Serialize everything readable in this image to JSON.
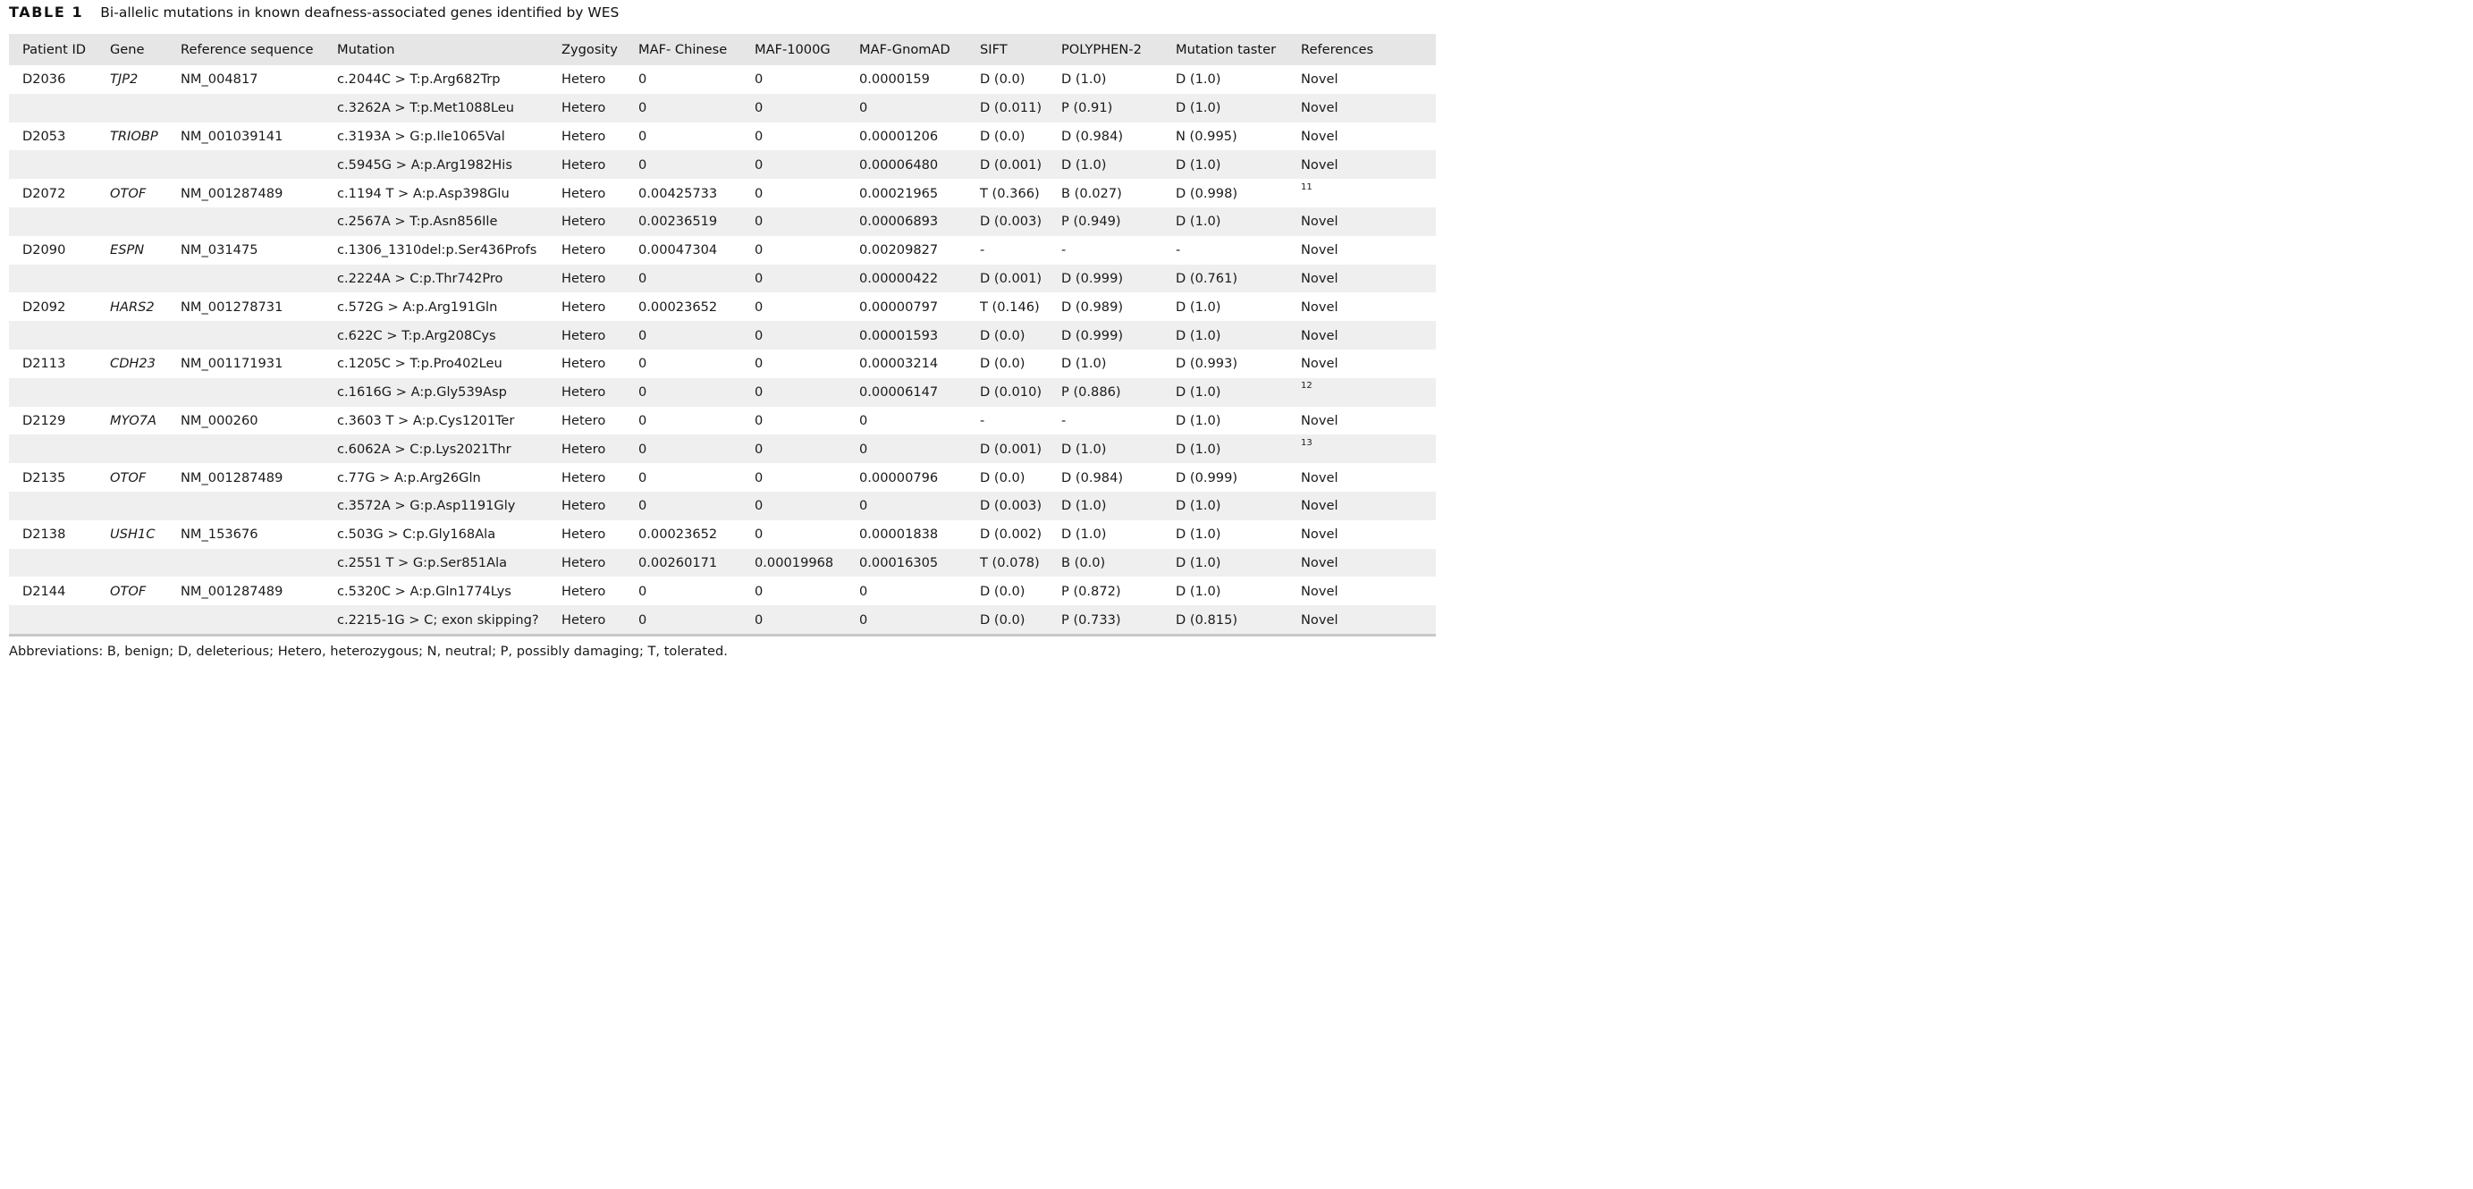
{
  "caption": {
    "label": "TABLE 1",
    "title": "Bi-allelic mutations in known deafness-associated genes identified by WES"
  },
  "columns": [
    "Patient ID",
    "Gene",
    "Reference sequence",
    "Mutation",
    "Zygosity",
    "MAF- Chinese",
    "MAF-1000G",
    "MAF-GnomAD",
    "SIFT",
    "POLYPHEN-2",
    "Mutation taster",
    "References"
  ],
  "rows": [
    {
      "patient": "D2036",
      "gene": "TJP2",
      "refseq": "NM_004817",
      "mutation": "c.2044C > T:p.Arg682Trp",
      "zygosity": "Hetero",
      "maf_chinese": "0",
      "maf_1000g": "0",
      "maf_gnomad": "0.0000159",
      "sift": "D (0.0)",
      "polyphen": "D (1.0)",
      "taster": "D (1.0)",
      "reference": "Novel",
      "reference_is_citation": false
    },
    {
      "patient": "",
      "gene": "",
      "refseq": "",
      "mutation": "c.3262A > T:p.Met1088Leu",
      "zygosity": "Hetero",
      "maf_chinese": "0",
      "maf_1000g": "0",
      "maf_gnomad": "0",
      "sift": "D (0.011)",
      "polyphen": "P (0.91)",
      "taster": "D (1.0)",
      "reference": "Novel",
      "reference_is_citation": false
    },
    {
      "patient": "D2053",
      "gene": "TRIOBP",
      "refseq": "NM_001039141",
      "mutation": "c.3193A > G:p.Ile1065Val",
      "zygosity": "Hetero",
      "maf_chinese": "0",
      "maf_1000g": "0",
      "maf_gnomad": "0.00001206",
      "sift": "D (0.0)",
      "polyphen": "D (0.984)",
      "taster": "N (0.995)",
      "reference": "Novel",
      "reference_is_citation": false
    },
    {
      "patient": "",
      "gene": "",
      "refseq": "",
      "mutation": "c.5945G > A:p.Arg1982His",
      "zygosity": "Hetero",
      "maf_chinese": "0",
      "maf_1000g": "0",
      "maf_gnomad": "0.00006480",
      "sift": "D (0.001)",
      "polyphen": "D (1.0)",
      "taster": "D (1.0)",
      "reference": "Novel",
      "reference_is_citation": false
    },
    {
      "patient": "D2072",
      "gene": "OTOF",
      "refseq": "NM_001287489",
      "mutation": "c.1194 T > A:p.Asp398Glu",
      "zygosity": "Hetero",
      "maf_chinese": "0.00425733",
      "maf_1000g": "0",
      "maf_gnomad": "0.00021965",
      "sift": "T (0.366)",
      "polyphen": "B (0.027)",
      "taster": "D (0.998)",
      "reference": "11",
      "reference_is_citation": true
    },
    {
      "patient": "",
      "gene": "",
      "refseq": "",
      "mutation": "c.2567A > T:p.Asn856Ile",
      "zygosity": "Hetero",
      "maf_chinese": "0.00236519",
      "maf_1000g": "0",
      "maf_gnomad": "0.00006893",
      "sift": "D (0.003)",
      "polyphen": "P (0.949)",
      "taster": "D (1.0)",
      "reference": "Novel",
      "reference_is_citation": false
    },
    {
      "patient": "D2090",
      "gene": "ESPN",
      "refseq": "NM_031475",
      "mutation": "c.1306_1310del:p.Ser436Profs",
      "zygosity": "Hetero",
      "maf_chinese": "0.00047304",
      "maf_1000g": "0",
      "maf_gnomad": "0.00209827",
      "sift": "-",
      "polyphen": "-",
      "taster": "-",
      "reference": "Novel",
      "reference_is_citation": false
    },
    {
      "patient": "",
      "gene": "",
      "refseq": "",
      "mutation": "c.2224A > C:p.Thr742Pro",
      "zygosity": "Hetero",
      "maf_chinese": "0",
      "maf_1000g": "0",
      "maf_gnomad": "0.00000422",
      "sift": "D (0.001)",
      "polyphen": "D (0.999)",
      "taster": "D (0.761)",
      "reference": "Novel",
      "reference_is_citation": false
    },
    {
      "patient": "D2092",
      "gene": "HARS2",
      "refseq": "NM_001278731",
      "mutation": "c.572G > A:p.Arg191Gln",
      "zygosity": "Hetero",
      "maf_chinese": "0.00023652",
      "maf_1000g": "0",
      "maf_gnomad": "0.00000797",
      "sift": "T (0.146)",
      "polyphen": "D (0.989)",
      "taster": "D (1.0)",
      "reference": "Novel",
      "reference_is_citation": false
    },
    {
      "patient": "",
      "gene": "",
      "refseq": "",
      "mutation": "c.622C > T:p.Arg208Cys",
      "zygosity": "Hetero",
      "maf_chinese": "0",
      "maf_1000g": "0",
      "maf_gnomad": "0.00001593",
      "sift": "D (0.0)",
      "polyphen": "D (0.999)",
      "taster": "D (1.0)",
      "reference": "Novel",
      "reference_is_citation": false
    },
    {
      "patient": "D2113",
      "gene": "CDH23",
      "refseq": "NM_001171931",
      "mutation": "c.1205C > T:p.Pro402Leu",
      "zygosity": "Hetero",
      "maf_chinese": "0",
      "maf_1000g": "0",
      "maf_gnomad": "0.00003214",
      "sift": "D (0.0)",
      "polyphen": "D (1.0)",
      "taster": "D (0.993)",
      "reference": "Novel",
      "reference_is_citation": false
    },
    {
      "patient": "",
      "gene": "",
      "refseq": "",
      "mutation": "c.1616G > A:p.Gly539Asp",
      "zygosity": "Hetero",
      "maf_chinese": "0",
      "maf_1000g": "0",
      "maf_gnomad": "0.00006147",
      "sift": "D (0.010)",
      "polyphen": "P (0.886)",
      "taster": "D (1.0)",
      "reference": "12",
      "reference_is_citation": true
    },
    {
      "patient": "D2129",
      "gene": "MYO7A",
      "refseq": "NM_000260",
      "mutation": "c.3603 T > A:p.Cys1201Ter",
      "zygosity": "Hetero",
      "maf_chinese": "0",
      "maf_1000g": "0",
      "maf_gnomad": "0",
      "sift": "-",
      "polyphen": "-",
      "taster": "D (1.0)",
      "reference": "Novel",
      "reference_is_citation": false
    },
    {
      "patient": "",
      "gene": "",
      "refseq": "",
      "mutation": "c.6062A > C:p.Lys2021Thr",
      "zygosity": "Hetero",
      "maf_chinese": "0",
      "maf_1000g": "0",
      "maf_gnomad": "0",
      "sift": "D (0.001)",
      "polyphen": "D (1.0)",
      "taster": "D (1.0)",
      "reference": "13",
      "reference_is_citation": true
    },
    {
      "patient": "D2135",
      "gene": "OTOF",
      "refseq": "NM_001287489",
      "mutation": "c.77G > A:p.Arg26Gln",
      "zygosity": "Hetero",
      "maf_chinese": "0",
      "maf_1000g": "0",
      "maf_gnomad": "0.00000796",
      "sift": "D (0.0)",
      "polyphen": "D (0.984)",
      "taster": "D (0.999)",
      "reference": "Novel",
      "reference_is_citation": false
    },
    {
      "patient": "",
      "gene": "",
      "refseq": "",
      "mutation": "c.3572A > G:p.Asp1191Gly",
      "zygosity": "Hetero",
      "maf_chinese": "0",
      "maf_1000g": "0",
      "maf_gnomad": "0",
      "sift": "D (0.003)",
      "polyphen": "D (1.0)",
      "taster": "D (1.0)",
      "reference": "Novel",
      "reference_is_citation": false
    },
    {
      "patient": "D2138",
      "gene": "USH1C",
      "refseq": "NM_153676",
      "mutation": "c.503G > C:p.Gly168Ala",
      "zygosity": "Hetero",
      "maf_chinese": "0.00023652",
      "maf_1000g": "0",
      "maf_gnomad": "0.00001838",
      "sift": "D (0.002)",
      "polyphen": "D (1.0)",
      "taster": "D (1.0)",
      "reference": "Novel",
      "reference_is_citation": false
    },
    {
      "patient": "",
      "gene": "",
      "refseq": "",
      "mutation": "c.2551 T > G:p.Ser851Ala",
      "zygosity": "Hetero",
      "maf_chinese": "0.00260171",
      "maf_1000g": "0.00019968",
      "maf_gnomad": "0.00016305",
      "sift": "T (0.078)",
      "polyphen": "B (0.0)",
      "taster": "D (1.0)",
      "reference": "Novel",
      "reference_is_citation": false
    },
    {
      "patient": "D2144",
      "gene": "OTOF",
      "refseq": "NM_001287489",
      "mutation": "c.5320C > A:p.Gln1774Lys",
      "zygosity": "Hetero",
      "maf_chinese": "0",
      "maf_1000g": "0",
      "maf_gnomad": "0",
      "sift": "D (0.0)",
      "polyphen": "P (0.872)",
      "taster": "D (1.0)",
      "reference": "Novel",
      "reference_is_citation": false
    },
    {
      "patient": "",
      "gene": "",
      "refseq": "",
      "mutation": "c.2215-1G > C; exon skipping?",
      "zygosity": "Hetero",
      "maf_chinese": "0",
      "maf_1000g": "0",
      "maf_gnomad": "0",
      "sift": "D (0.0)",
      "polyphen": "P (0.733)",
      "taster": "D (0.815)",
      "reference": "Novel",
      "reference_is_citation": false
    }
  ],
  "footnote": "Abbreviations: B, benign; D, deleterious; Hetero, heterozygous; N, neutral; P, possibly damaging; T, tolerated.",
  "colors": {
    "header_bg": "#e6e6e6",
    "shaded_row_bg": "#efefef",
    "rule": "#c8c8c8"
  }
}
